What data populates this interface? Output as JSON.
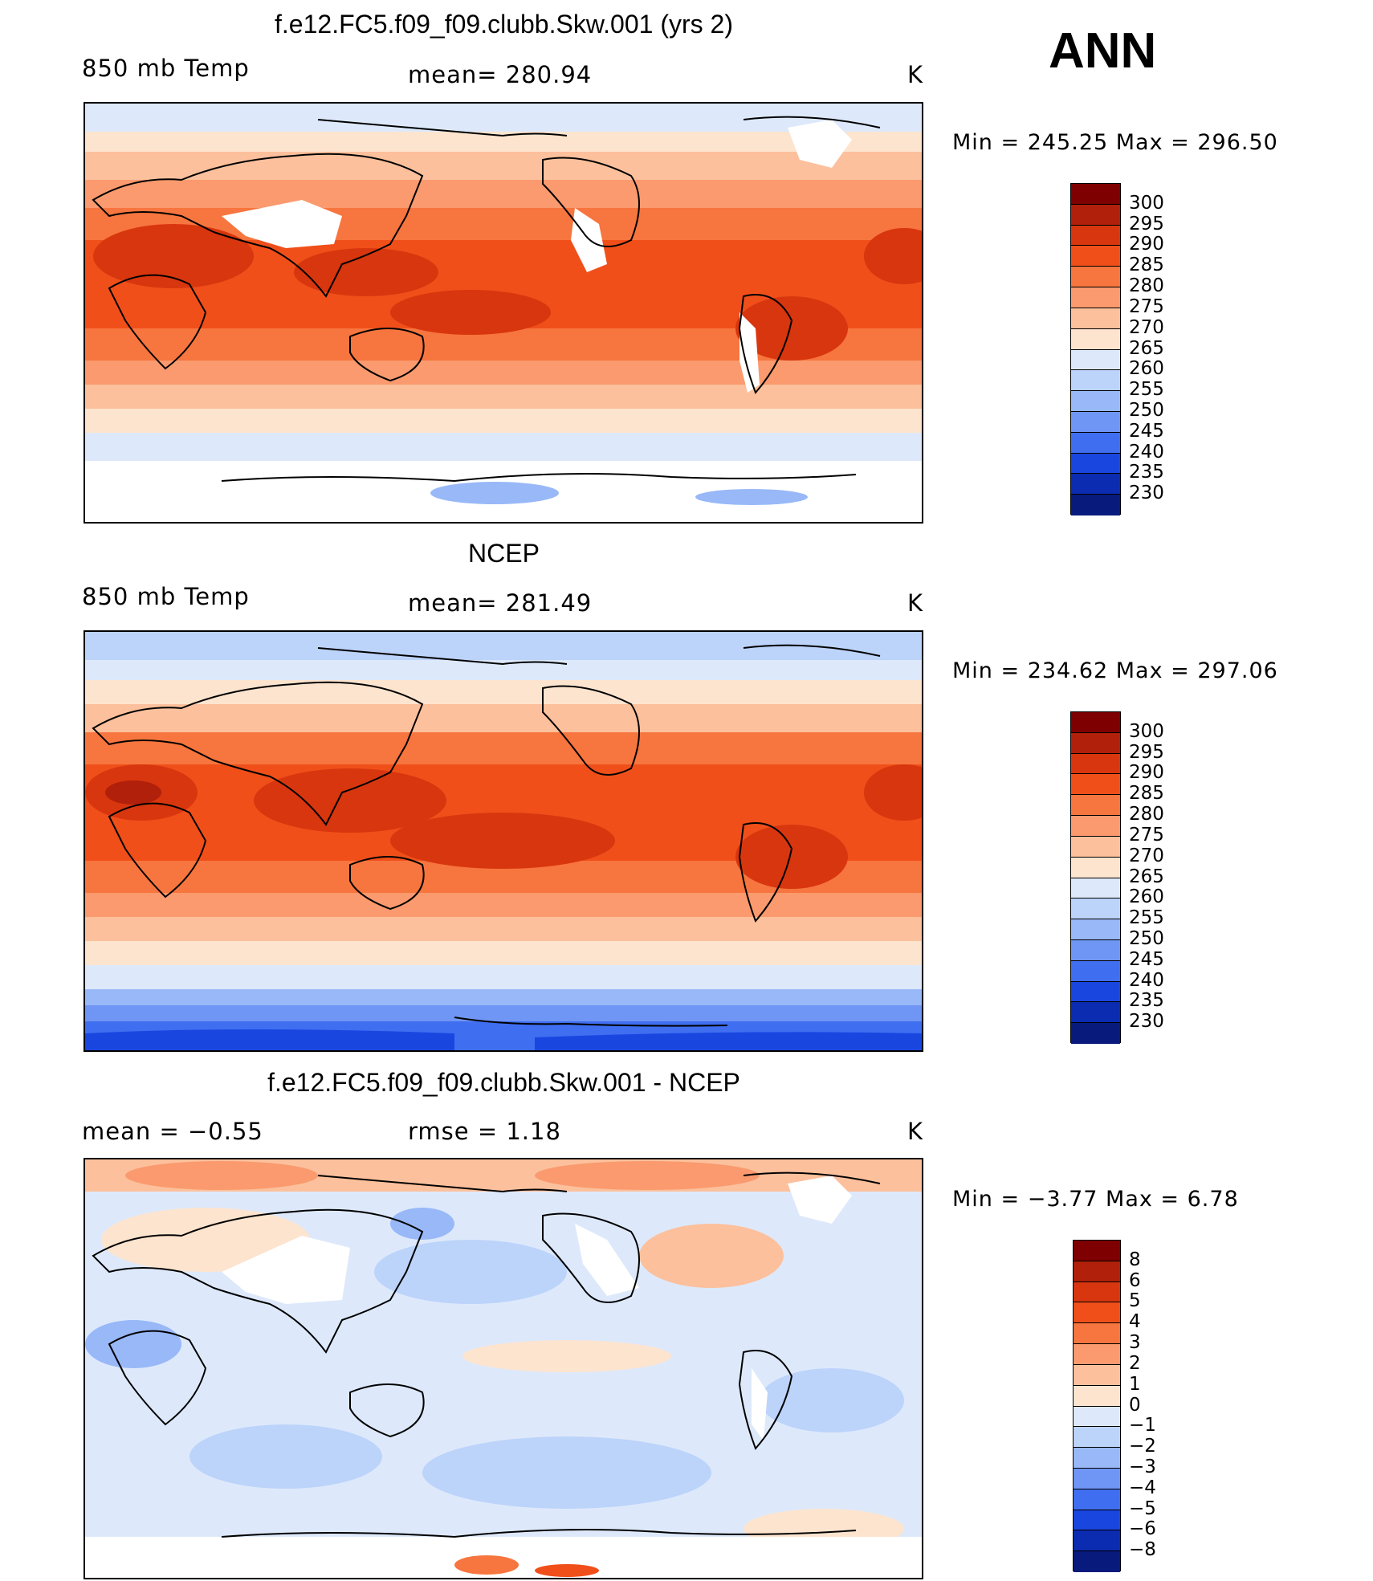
{
  "header": {
    "season": "ANN"
  },
  "panels": [
    {
      "title": "f.e12.FC5.f09_f09.clubb.Skw.001 (yrs 2)",
      "left_label": "850 mb Temp",
      "center_label": "mean=  280.94",
      "units": "K",
      "minmax": "Min  =  245.25  Max  =  296.50"
    },
    {
      "title": "NCEP",
      "left_label": "850 mb Temp",
      "center_label": "mean=  281.49",
      "units": "K",
      "minmax": "Min  =  234.62  Max  =  297.06"
    },
    {
      "title": "f.e12.FC5.f09_f09.clubb.Skw.001 - NCEP",
      "left_label": "mean  =    −0.55",
      "center_label": "rmse  =     1.18",
      "units": "K",
      "minmax": "Min  =    −3.77  Max  =      6.78"
    }
  ],
  "colorbars": {
    "temperature": {
      "labels": [
        "300",
        "295",
        "290",
        "285",
        "280",
        "275",
        "270",
        "265",
        "260",
        "255",
        "250",
        "245",
        "240",
        "235",
        "230"
      ],
      "colors": [
        "#7f0000",
        "#b0200a",
        "#d8360e",
        "#f04f1a",
        "#f7753e",
        "#fa9a6e",
        "#fcc09c",
        "#fde4cf",
        "#dde9fb",
        "#bcd3fa",
        "#98b8f8",
        "#6f96f4",
        "#3f6ef0",
        "#1a46e0",
        "#0b2bb0",
        "#081a7c"
      ]
    },
    "difference": {
      "labels": [
        "8",
        "6",
        "5",
        "4",
        "3",
        "2",
        "1",
        "0",
        "−1",
        "−2",
        "−3",
        "−4",
        "−5",
        "−6",
        "−8"
      ],
      "colors": [
        "#7f0000",
        "#b0200a",
        "#d8360e",
        "#f04f1a",
        "#f7753e",
        "#fa9a6e",
        "#fcc09c",
        "#fde4cf",
        "#dde9fb",
        "#bcd3fa",
        "#98b8f8",
        "#6f96f4",
        "#3f6ef0",
        "#1a46e0",
        "#0b2bb0",
        "#081a7c"
      ]
    }
  }
}
